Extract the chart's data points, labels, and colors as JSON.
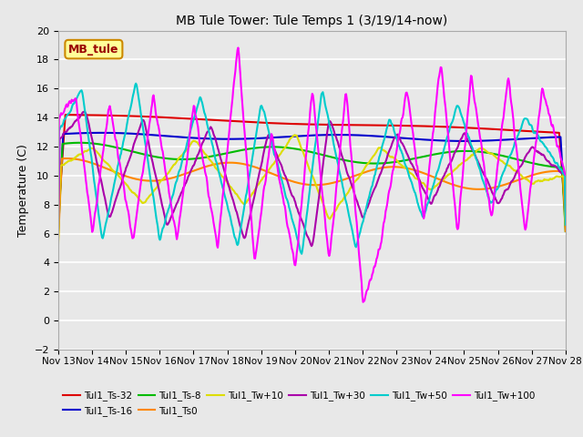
{
  "title": "MB Tule Tower: Tule Temps 1 (3/19/14-now)",
  "ylabel": "Temperature (C)",
  "xlim": [
    0,
    15
  ],
  "ylim": [
    -2,
    20
  ],
  "yticks": [
    -2,
    0,
    2,
    4,
    6,
    8,
    10,
    12,
    14,
    16,
    18,
    20
  ],
  "xtick_labels": [
    "Nov 13",
    "Nov 14",
    "Nov 15",
    "Nov 16",
    "Nov 17",
    "Nov 18",
    "Nov 19",
    "Nov 20",
    "Nov 21",
    "Nov 22",
    "Nov 23",
    "Nov 24",
    "Nov 25",
    "Nov 26",
    "Nov 27",
    "Nov 28"
  ],
  "bg_color": "#e8e8e8",
  "grid_color": "#ffffff",
  "legend_label": "MB_tule",
  "legend_label_color": "#990000",
  "legend_bg": "#ffff99",
  "legend_edge": "#cc8800",
  "series": [
    {
      "name": "Tul1_Ts-32",
      "color": "#dd0000",
      "lw": 1.5
    },
    {
      "name": "Tul1_Ts-16",
      "color": "#0000cc",
      "lw": 1.5
    },
    {
      "name": "Tul1_Ts-8",
      "color": "#00bb00",
      "lw": 1.5
    },
    {
      "name": "Tul1_Ts0",
      "color": "#ff8800",
      "lw": 1.5
    },
    {
      "name": "Tul1_Tw+10",
      "color": "#dddd00",
      "lw": 1.5
    },
    {
      "name": "Tul1_Tw+30",
      "color": "#aa00aa",
      "lw": 1.5
    },
    {
      "name": "Tul1_Tw+50",
      "color": "#00cccc",
      "lw": 1.5
    },
    {
      "name": "Tul1_Tw+100",
      "color": "#ff00ff",
      "lw": 1.5
    }
  ]
}
